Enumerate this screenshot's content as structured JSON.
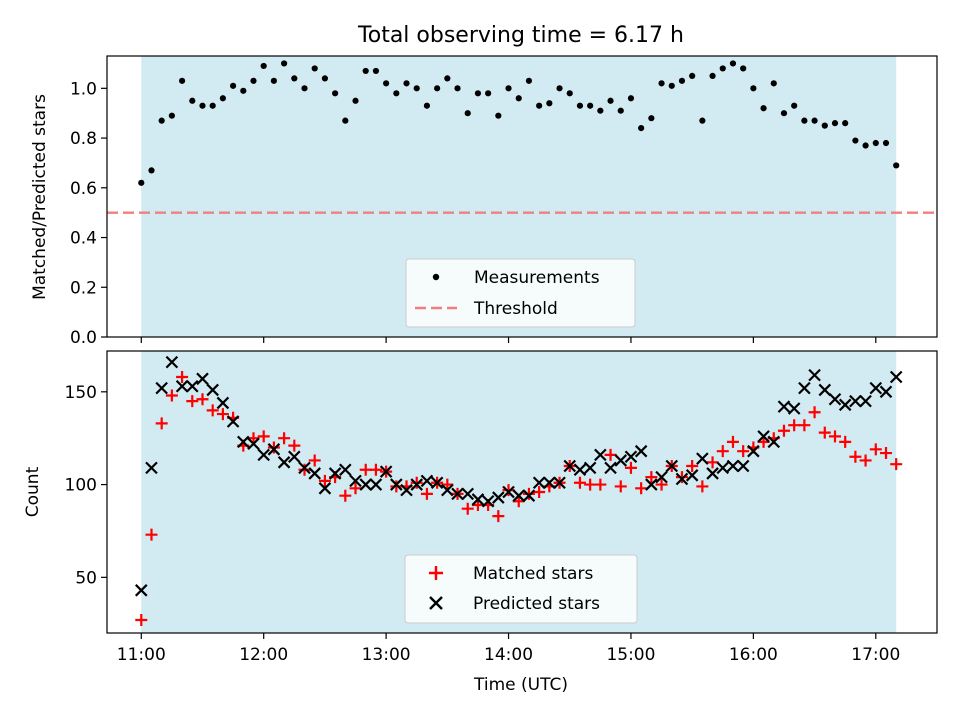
{
  "title": "Total observing time = 6.17 h",
  "xlabel": "Time (UTC)",
  "colors": {
    "shade": "#add8e6",
    "measure": "#000000",
    "threshold": "#f08080",
    "matched": "#ff0000",
    "predicted": "#000000"
  },
  "chart_data": [
    {
      "type": "scatter",
      "ylabel": "Matched/Predicted stars",
      "ylim": [
        0,
        1.13
      ],
      "yticks": [
        "0.0",
        "0.2",
        "0.4",
        "0.6",
        "0.8",
        "1.0"
      ],
      "xticks": [
        "11:00",
        "12:00",
        "13:00",
        "14:00",
        "15:00",
        "16:00",
        "17:00"
      ],
      "xlim_hours": [
        10.72,
        17.5
      ],
      "observing_window": [
        "11:00",
        "17:10"
      ],
      "legend": {
        "placement": "lower-center",
        "entries": [
          "Measurements",
          "Threshold"
        ]
      },
      "threshold": 0.5,
      "series": [
        {
          "name": "Measurements",
          "x": [
            "11:00",
            "11:05",
            "11:10",
            "11:15",
            "11:20",
            "11:25",
            "11:30",
            "11:35",
            "11:40",
            "11:45",
            "11:50",
            "11:55",
            "12:00",
            "12:05",
            "12:10",
            "12:15",
            "12:20",
            "12:25",
            "12:30",
            "12:35",
            "12:40",
            "12:45",
            "12:50",
            "12:55",
            "13:00",
            "13:05",
            "13:10",
            "13:15",
            "13:20",
            "13:25",
            "13:30",
            "13:35",
            "13:40",
            "13:45",
            "13:50",
            "13:55",
            "14:00",
            "14:05",
            "14:10",
            "14:15",
            "14:20",
            "14:25",
            "14:30",
            "14:35",
            "14:40",
            "14:45",
            "14:50",
            "14:55",
            "15:00",
            "15:05",
            "15:10",
            "15:15",
            "15:20",
            "15:25",
            "15:30",
            "15:35",
            "15:40",
            "15:45",
            "15:50",
            "15:55",
            "16:00",
            "16:05",
            "16:10",
            "16:15",
            "16:20",
            "16:25",
            "16:30",
            "16:35",
            "16:40",
            "16:45",
            "16:50",
            "16:55",
            "17:00",
            "17:05",
            "17:10"
          ],
          "y": [
            0.62,
            0.67,
            0.87,
            0.89,
            1.03,
            0.95,
            0.93,
            0.93,
            0.96,
            1.01,
            0.99,
            1.03,
            1.09,
            1.03,
            1.1,
            1.04,
            1.0,
            1.08,
            1.04,
            0.98,
            0.87,
            0.95,
            1.07,
            1.07,
            1.02,
            0.98,
            1.02,
            1.0,
            0.93,
            1.0,
            1.04,
            1.0,
            0.9,
            0.98,
            0.98,
            0.89,
            1.0,
            0.96,
            1.03,
            0.93,
            0.94,
            1.0,
            0.98,
            0.93,
            0.93,
            0.91,
            0.95,
            0.91,
            0.96,
            0.84,
            0.88,
            1.02,
            1.01,
            1.03,
            1.05,
            0.87,
            1.05,
            1.08,
            1.1,
            1.08,
            1.0,
            0.92,
            1.02,
            0.9,
            0.93,
            0.87,
            0.87,
            0.85,
            0.86,
            0.86,
            0.79,
            0.77,
            0.78,
            0.78,
            0.69
          ]
        }
      ]
    },
    {
      "type": "scatter",
      "ylabel": "Count",
      "ylim": [
        20,
        172
      ],
      "yticks": [
        "50",
        "100",
        "150"
      ],
      "xticks": [
        "11:00",
        "12:00",
        "13:00",
        "14:00",
        "15:00",
        "16:00",
        "17:00"
      ],
      "xlim_hours": [
        10.72,
        17.5
      ],
      "observing_window": [
        "11:00",
        "17:10"
      ],
      "legend": {
        "placement": "lower-center",
        "entries": [
          "Matched stars",
          "Predicted stars"
        ]
      },
      "series": [
        {
          "name": "Matched stars",
          "x": [
            "11:00",
            "11:05",
            "11:10",
            "11:15",
            "11:20",
            "11:25",
            "11:30",
            "11:35",
            "11:40",
            "11:45",
            "11:50",
            "11:55",
            "12:00",
            "12:05",
            "12:10",
            "12:15",
            "12:20",
            "12:25",
            "12:30",
            "12:35",
            "12:40",
            "12:45",
            "12:50",
            "12:55",
            "13:00",
            "13:05",
            "13:10",
            "13:15",
            "13:20",
            "13:25",
            "13:30",
            "13:35",
            "13:40",
            "13:45",
            "13:50",
            "13:55",
            "14:00",
            "14:05",
            "14:10",
            "14:15",
            "14:20",
            "14:25",
            "14:30",
            "14:35",
            "14:40",
            "14:45",
            "14:50",
            "14:55",
            "15:00",
            "15:05",
            "15:10",
            "15:15",
            "15:20",
            "15:25",
            "15:30",
            "15:35",
            "15:40",
            "15:45",
            "15:50",
            "15:55",
            "16:00",
            "16:05",
            "16:10",
            "16:15",
            "16:20",
            "16:25",
            "16:30",
            "16:35",
            "16:40",
            "16:45",
            "16:50",
            "16:55",
            "17:00",
            "17:05",
            "17:10"
          ],
          "y": [
            27,
            73,
            133,
            148,
            158,
            145,
            146,
            140,
            138,
            136,
            121,
            125,
            126,
            120,
            125,
            121,
            108,
            113,
            102,
            104,
            94,
            98,
            108,
            108,
            107,
            99,
            99,
            101,
            95,
            101,
            100,
            95,
            87,
            89,
            89,
            83,
            97,
            91,
            95,
            96,
            99,
            101,
            110,
            101,
            100,
            100,
            116,
            99,
            109,
            98,
            104,
            100,
            110,
            104,
            110,
            99,
            112,
            118,
            123,
            118,
            120,
            123,
            125,
            129,
            132,
            132,
            139,
            128,
            126,
            123,
            115,
            113,
            119,
            117,
            111
          ]
        },
        {
          "name": "Predicted stars",
          "x": [
            "11:00",
            "11:05",
            "11:10",
            "11:15",
            "11:20",
            "11:25",
            "11:30",
            "11:35",
            "11:40",
            "11:45",
            "11:50",
            "11:55",
            "12:00",
            "12:05",
            "12:10",
            "12:15",
            "12:20",
            "12:25",
            "12:30",
            "12:35",
            "12:40",
            "12:45",
            "12:50",
            "12:55",
            "13:00",
            "13:05",
            "13:10",
            "13:15",
            "13:20",
            "13:25",
            "13:30",
            "13:35",
            "13:40",
            "13:45",
            "13:50",
            "13:55",
            "14:00",
            "14:05",
            "14:10",
            "14:15",
            "14:20",
            "14:25",
            "14:30",
            "14:35",
            "14:40",
            "14:45",
            "14:50",
            "14:55",
            "15:00",
            "15:05",
            "15:10",
            "15:15",
            "15:20",
            "15:25",
            "15:30",
            "15:35",
            "15:40",
            "15:45",
            "15:50",
            "15:55",
            "16:00",
            "16:05",
            "16:10",
            "16:15",
            "16:20",
            "16:25",
            "16:30",
            "16:35",
            "16:40",
            "16:45",
            "16:50",
            "16:55",
            "17:00",
            "17:05",
            "17:10"
          ],
          "y": [
            43,
            109,
            152,
            166,
            153,
            153,
            157,
            151,
            144,
            134,
            123,
            122,
            116,
            119,
            112,
            115,
            109,
            106,
            98,
            106,
            108,
            102,
            100,
            100,
            107,
            100,
            97,
            100,
            102,
            101,
            97,
            95,
            95,
            92,
            91,
            93,
            96,
            94,
            94,
            101,
            101,
            101,
            110,
            108,
            109,
            116,
            109,
            113,
            115,
            118,
            100,
            104,
            110,
            103,
            105,
            114,
            106,
            109,
            110,
            110,
            118,
            126,
            123,
            142,
            141,
            152,
            159,
            151,
            146,
            143,
            145,
            145,
            152,
            150,
            158
          ]
        }
      ]
    }
  ]
}
